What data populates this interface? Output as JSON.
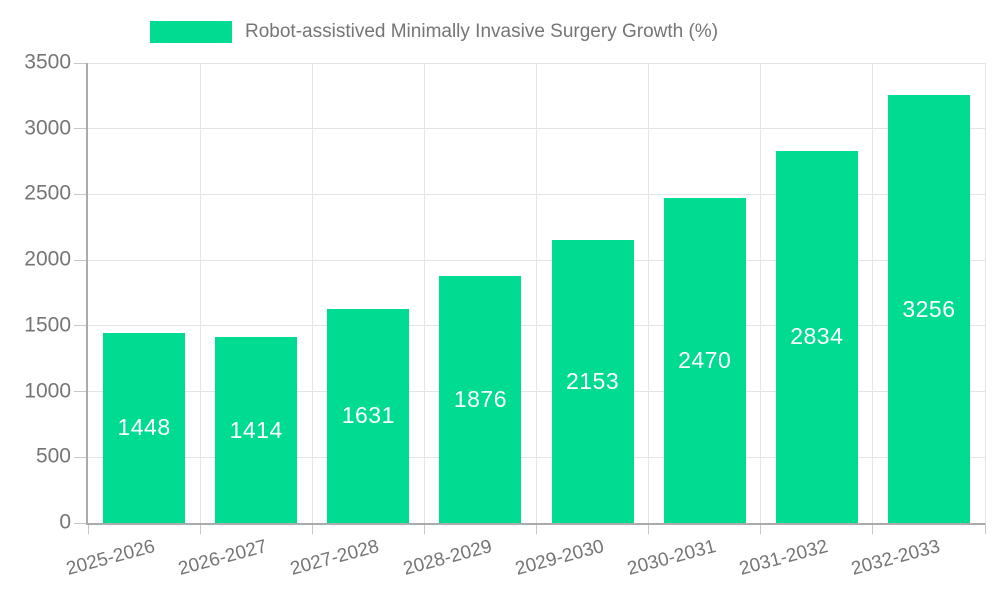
{
  "colors": {
    "bar": "#00db92",
    "bar_label": "#ffffff",
    "axis_text": "#757575",
    "grid": "#e4e4e4",
    "axis_line": "#ababab",
    "tick": "#c6c6c6"
  },
  "legend": {
    "label": "Robot-assistived Minimally Invasive Surgery Growth (%)"
  },
  "chart_data": {
    "type": "bar",
    "title": "Robot-assistived Minimally Invasive Surgery Growth (%)",
    "categories": [
      "2025-2026",
      "2026-2027",
      "2027-2028",
      "2028-2029",
      "2029-2030",
      "2030-2031",
      "2031-2032",
      "2032-2033"
    ],
    "values": [
      1448,
      1414,
      1631,
      1876,
      2153,
      2470,
      2834,
      3256
    ],
    "xlabel": "",
    "ylabel": "",
    "ylim": [
      0,
      3500
    ],
    "yticks": [
      0,
      500,
      1000,
      1500,
      2000,
      2500,
      3000,
      3500
    ],
    "grid": true,
    "legend_position": "top",
    "value_label_position": "inside-center",
    "x_label_rotation_deg": -15
  }
}
